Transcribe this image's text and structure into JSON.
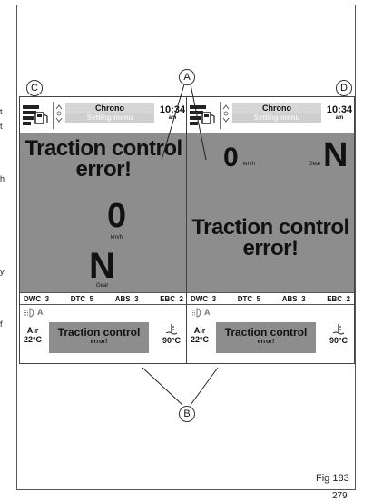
{
  "edge_text": [
    "t",
    "t",
    "h",
    "y",
    "f"
  ],
  "callouts": {
    "a": "A",
    "b": "B",
    "c": "C",
    "d": "D"
  },
  "screens": {
    "left": {
      "menu_title": "Chrono",
      "menu_sub": "Setting menu",
      "time": "10:34",
      "ampm": "am",
      "error_line1": "Traction control",
      "error_line2": "error!",
      "speed": "0",
      "speed_unit": "km/h",
      "gear": "N",
      "gear_label": "Gear"
    },
    "right": {
      "menu_title": "Chrono",
      "menu_sub": "Setting menu",
      "time": "10:34",
      "ampm": "am",
      "error_line1": "Traction control",
      "error_line2": "error!",
      "speed": "0",
      "speed_unit": "km/h",
      "gear": "N",
      "gear_label": "Gear"
    }
  },
  "status_bar": {
    "dwc_label": "DWC",
    "dwc_value": "3",
    "dtc_label": "DTC",
    "dtc_value": "5",
    "abs_label": "ABS",
    "abs_value": "3",
    "ebc_label": "EBC",
    "ebc_value": "2"
  },
  "bottom": {
    "air_label": "Air",
    "air_temp": "22°C",
    "coolant_temp": "90°C",
    "msg_line1": "Traction control",
    "msg_line2": "error!",
    "light_mode": "A"
  },
  "figure_label": "Fig 183",
  "page_number": "279",
  "colors": {
    "panel_grey": "#8e8d8d",
    "menu_bg": "#d6d6d6"
  }
}
